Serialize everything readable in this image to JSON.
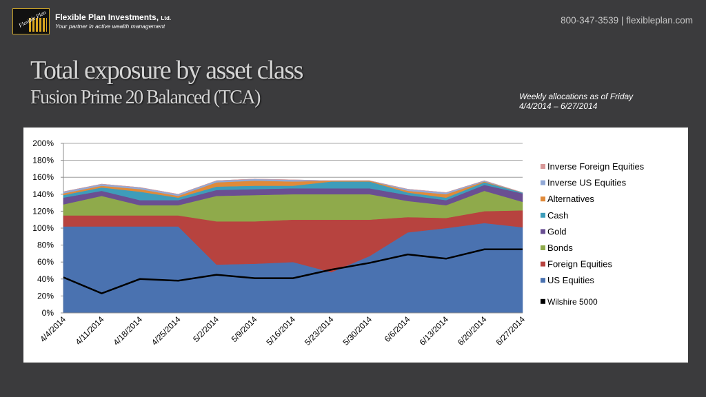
{
  "header": {
    "logo_text": "Flexible Plan",
    "company_name": "Flexible Plan Investments,",
    "company_suffix": "Ltd.",
    "tagline": "Your partner in active wealth management",
    "contact": "800-347-3539  |  flexibleplan.com"
  },
  "slide": {
    "title": "Total exposure by asset class",
    "subtitle": "Fusion Prime 20 Balanced (TCA)",
    "note_line1": "Weekly allocations as of Friday",
    "note_line2": "4/4/2014 – 6/27/2014"
  },
  "chart_data": {
    "type": "area",
    "categories": [
      "4/4/2014",
      "4/11/2014",
      "4/18/2014",
      "4/25/2014",
      "5/2/2014",
      "5/9/2014",
      "5/16/2014",
      "5/23/2014",
      "5/30/2014",
      "6/6/2014",
      "6/13/2014",
      "6/20/2014",
      "6/27/2014"
    ],
    "yticks": [
      "0%",
      "20%",
      "40%",
      "60%",
      "80%",
      "100%",
      "120%",
      "140%",
      "160%",
      "180%",
      "200%"
    ],
    "ylim": [
      0,
      200
    ],
    "grid": true,
    "legend_position": "right",
    "series": [
      {
        "name": "US Equities",
        "color": "#4a72b0",
        "values": [
          102,
          102,
          102,
          102,
          57,
          58,
          60,
          48,
          67,
          95,
          100,
          106,
          101
        ]
      },
      {
        "name": "Foreign Equities",
        "color": "#b7433f",
        "values": [
          13,
          13,
          13,
          13,
          51,
          50,
          50,
          62,
          43,
          18,
          12,
          14,
          20
        ]
      },
      {
        "name": "Bonds",
        "color": "#8faa4b",
        "values": [
          13,
          23,
          12,
          12,
          30,
          31,
          30,
          30,
          30,
          19,
          15,
          24,
          10
        ]
      },
      {
        "name": "Gold",
        "color": "#6a4f92",
        "values": [
          8,
          6,
          6,
          6,
          7,
          7,
          7,
          7,
          7,
          7,
          6,
          7,
          10
        ]
      },
      {
        "name": "Cash",
        "color": "#3e9dba",
        "values": [
          3,
          4,
          10,
          3,
          4,
          4,
          3,
          8,
          8,
          3,
          3,
          3,
          1
        ]
      },
      {
        "name": "Alternatives",
        "color": "#e08a3a",
        "values": [
          2,
          2,
          3,
          2,
          5,
          6,
          5,
          1,
          1,
          2,
          4,
          1,
          0
        ]
      },
      {
        "name": "Inverse US Equities",
        "color": "#92a9d6",
        "values": [
          2,
          2,
          2,
          2,
          2,
          2,
          2,
          0,
          0,
          2,
          2,
          1,
          0
        ]
      },
      {
        "name": "Inverse Foreign Equities",
        "color": "#d89898",
        "values": [
          0,
          0,
          0,
          0,
          0,
          0,
          0,
          0,
          0,
          0,
          0,
          0,
          0
        ]
      }
    ],
    "line_series": {
      "name": "Wilshire 5000",
      "color": "#000000",
      "values": [
        42,
        23,
        40,
        38,
        45,
        41,
        41,
        51,
        59,
        69,
        64,
        75,
        75
      ]
    },
    "legend_order": [
      "Inverse Foreign Equities",
      "Inverse US Equities",
      "Alternatives",
      "Cash",
      "Gold",
      "Bonds",
      "Foreign Equities",
      "US Equities",
      "Wilshire 5000"
    ]
  }
}
